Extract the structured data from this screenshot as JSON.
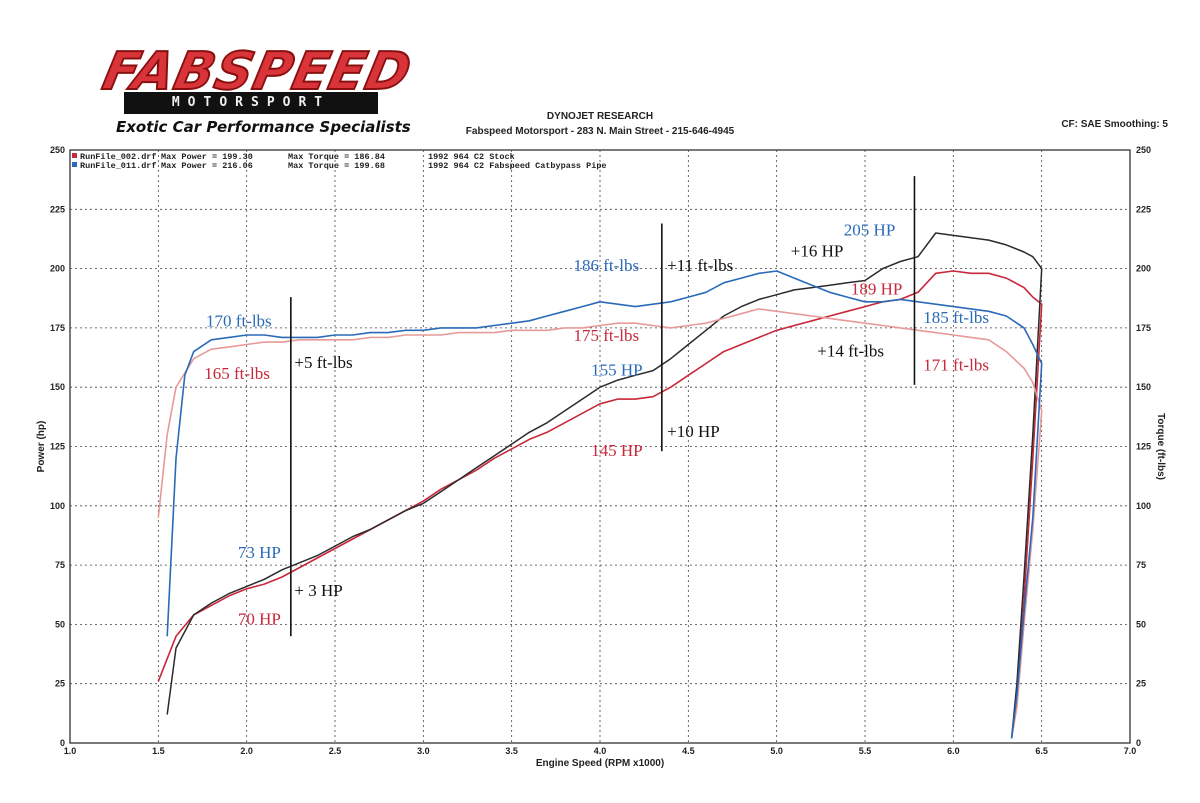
{
  "logo": {
    "brand": "FABSPEED",
    "sub": "MOTORSPORT",
    "tagline": "Exotic Car Performance Specialists"
  },
  "header": {
    "org": "DYNOJET RESEARCH",
    "address": "Fabspeed Motorsport - 283 N. Main Street - 215-646-4945",
    "settings": "CF: SAE  Smoothing: 5"
  },
  "colors": {
    "stock": "#c8283a",
    "stock_light": "#e79a9a",
    "catbypass": "#2a6ab8",
    "catbypass_light": "#7fa9dc",
    "annotation_dark": "#111111",
    "grid": "#444444"
  },
  "chart_data": {
    "type": "line",
    "title": "",
    "xlabel": "Engine Speed (RPM x1000)",
    "ylabel": "Power (hp)",
    "ylabel_right": "Torque (ft-lbs)",
    "xlim": [
      1.0,
      7.0
    ],
    "ylim": [
      0,
      250
    ],
    "ylim_right": [
      0,
      250
    ],
    "x_ticks": [
      "1.0",
      "1.5",
      "2.0",
      "2.5",
      "3.0",
      "3.5",
      "4.0",
      "4.5",
      "5.0",
      "5.5",
      "6.0",
      "6.5",
      "7.0"
    ],
    "y_ticks": [
      "0",
      "25",
      "50",
      "75",
      "100",
      "125",
      "150",
      "175",
      "200",
      "225",
      "250"
    ],
    "grid": true,
    "legend_position": "top-left",
    "legend": [
      {
        "file": "RunFile_002.drf",
        "max_power_label": "Max Power = 199.30",
        "max_torque_label": "Max Torque = 186.84",
        "description": "1992 964 C2 Stock"
      },
      {
        "file": "RunFile_011.drf",
        "max_power_label": "Max Power = 216.06",
        "max_torque_label": "Max Torque = 199.68",
        "description": "1992 964 C2 Fabspeed Catbypass Pipe"
      }
    ],
    "series": [
      {
        "key": "stock_power",
        "kind": "power",
        "x": [
          1.5,
          1.6,
          1.7,
          1.8,
          1.9,
          2.0,
          2.1,
          2.2,
          2.3,
          2.4,
          2.5,
          2.6,
          2.7,
          2.8,
          2.9,
          3.0,
          3.1,
          3.2,
          3.3,
          3.4,
          3.5,
          3.6,
          3.7,
          3.8,
          3.9,
          4.0,
          4.1,
          4.2,
          4.3,
          4.4,
          4.5,
          4.6,
          4.7,
          4.8,
          4.9,
          5.0,
          5.1,
          5.2,
          5.3,
          5.4,
          5.5,
          5.6,
          5.7,
          5.8,
          5.9,
          6.0,
          6.1,
          6.2,
          6.3,
          6.4,
          6.45,
          6.5,
          6.45,
          6.4,
          6.36,
          6.33
        ],
        "y": [
          26,
          45,
          54,
          58,
          62,
          65,
          67,
          70,
          74,
          78,
          82,
          86,
          90,
          94,
          98,
          102,
          107,
          111,
          115,
          120,
          124,
          128,
          131,
          135,
          139,
          143,
          145,
          145,
          146,
          150,
          155,
          160,
          165,
          168,
          171,
          174,
          176,
          178,
          180,
          182,
          184,
          186,
          187,
          190,
          198,
          199,
          198,
          198,
          196,
          192,
          188,
          185,
          120,
          60,
          20,
          2
        ]
      },
      {
        "key": "catbypass_power",
        "kind": "power",
        "x": [
          1.55,
          1.6,
          1.7,
          1.8,
          1.9,
          2.0,
          2.1,
          2.2,
          2.3,
          2.4,
          2.5,
          2.6,
          2.7,
          2.8,
          2.9,
          3.0,
          3.1,
          3.2,
          3.3,
          3.4,
          3.5,
          3.6,
          3.7,
          3.8,
          3.9,
          4.0,
          4.1,
          4.2,
          4.3,
          4.4,
          4.5,
          4.6,
          4.7,
          4.8,
          4.9,
          5.0,
          5.1,
          5.2,
          5.3,
          5.4,
          5.5,
          5.6,
          5.7,
          5.8,
          5.9,
          6.0,
          6.1,
          6.2,
          6.3,
          6.4,
          6.45,
          6.5,
          6.45,
          6.4,
          6.36,
          6.33
        ],
        "y": [
          12,
          40,
          54,
          59,
          63,
          66,
          69,
          73,
          76,
          79,
          83,
          87,
          90,
          94,
          98,
          101,
          106,
          111,
          116,
          121,
          126,
          131,
          135,
          140,
          145,
          150,
          153,
          155,
          157,
          162,
          168,
          174,
          180,
          184,
          187,
          189,
          191,
          192,
          193,
          194,
          195,
          200,
          203,
          205,
          215,
          214,
          213,
          212,
          210,
          207,
          205,
          200,
          130,
          70,
          25,
          2
        ]
      },
      {
        "key": "stock_torque",
        "kind": "torque",
        "x": [
          1.5,
          1.55,
          1.6,
          1.7,
          1.8,
          1.9,
          2.0,
          2.1,
          2.2,
          2.3,
          2.4,
          2.5,
          2.6,
          2.7,
          2.8,
          2.9,
          3.0,
          3.1,
          3.2,
          3.3,
          3.4,
          3.5,
          3.6,
          3.7,
          3.8,
          3.9,
          4.0,
          4.1,
          4.2,
          4.3,
          4.4,
          4.5,
          4.6,
          4.7,
          4.8,
          4.9,
          5.0,
          5.1,
          5.2,
          5.3,
          5.4,
          5.5,
          5.6,
          5.7,
          5.8,
          5.9,
          6.0,
          6.1,
          6.2,
          6.3,
          6.4,
          6.45,
          6.5,
          6.45,
          6.4,
          6.36,
          6.33
        ],
        "y": [
          95,
          130,
          150,
          162,
          166,
          167,
          168,
          169,
          169,
          170,
          170,
          170,
          170,
          171,
          171,
          172,
          172,
          172,
          173,
          173,
          173,
          174,
          174,
          174,
          175,
          175,
          176,
          177,
          177,
          176,
          175,
          176,
          177,
          179,
          181,
          183,
          182,
          181,
          180,
          179,
          178,
          177,
          176,
          175,
          174,
          173,
          172,
          171,
          170,
          165,
          158,
          152,
          140,
          90,
          50,
          15,
          2
        ]
      },
      {
        "key": "catbypass_torque",
        "kind": "torque",
        "x": [
          1.55,
          1.6,
          1.65,
          1.7,
          1.8,
          1.9,
          2.0,
          2.1,
          2.2,
          2.3,
          2.4,
          2.5,
          2.6,
          2.7,
          2.8,
          2.9,
          3.0,
          3.1,
          3.2,
          3.3,
          3.4,
          3.5,
          3.6,
          3.7,
          3.8,
          3.9,
          4.0,
          4.1,
          4.2,
          4.3,
          4.4,
          4.5,
          4.6,
          4.7,
          4.8,
          4.9,
          5.0,
          5.1,
          5.2,
          5.3,
          5.4,
          5.5,
          5.6,
          5.7,
          5.8,
          5.9,
          6.0,
          6.1,
          6.2,
          6.3,
          6.4,
          6.45,
          6.5,
          6.45,
          6.4,
          6.36,
          6.33
        ],
        "y": [
          45,
          120,
          155,
          165,
          170,
          171,
          172,
          172,
          171,
          171,
          171,
          172,
          172,
          173,
          173,
          174,
          174,
          175,
          175,
          175,
          176,
          177,
          178,
          180,
          182,
          184,
          186,
          185,
          184,
          185,
          186,
          188,
          190,
          194,
          196,
          198,
          199,
          196,
          193,
          190,
          188,
          186,
          186,
          187,
          186,
          185,
          184,
          183,
          182,
          180,
          175,
          168,
          160,
          95,
          55,
          20,
          2
        ]
      }
    ],
    "markers": [
      {
        "x": 2.25,
        "y_from": 45,
        "y_to": 188
      },
      {
        "x": 4.35,
        "y_from": 123,
        "y_to": 219
      },
      {
        "x": 5.78,
        "y_from": 151,
        "y_to": 239
      }
    ],
    "annotations": [
      {
        "text": "170 ft-lbs",
        "x": 1.77,
        "y": 175.5,
        "color": "catbypass"
      },
      {
        "text": "165 ft-lbs",
        "x": 1.76,
        "y": 153.5,
        "color": "stock"
      },
      {
        "text": "+5 ft-lbs",
        "x": 2.27,
        "y": 158,
        "color": "annotation_dark"
      },
      {
        "text": "73 HP",
        "x": 1.95,
        "y": 78,
        "color": "catbypass"
      },
      {
        "text": "70  HP",
        "x": 1.95,
        "y": 50,
        "color": "stock"
      },
      {
        "text": "+ 3 HP",
        "x": 2.27,
        "y": 62,
        "color": "annotation_dark"
      },
      {
        "text": "186 ft-lbs",
        "x": 3.85,
        "y": 199,
        "color": "catbypass"
      },
      {
        "text": "+11 ft-lbs",
        "x": 4.38,
        "y": 199,
        "color": "annotation_dark"
      },
      {
        "text": "175 ft-lbs",
        "x": 3.85,
        "y": 169.5,
        "color": "stock"
      },
      {
        "text": "155 HP",
        "x": 3.95,
        "y": 155,
        "color": "catbypass"
      },
      {
        "text": "+10 HP",
        "x": 4.38,
        "y": 129,
        "color": "annotation_dark"
      },
      {
        "text": "145 HP",
        "x": 3.95,
        "y": 121,
        "color": "stock"
      },
      {
        "text": "+16 HP",
        "x": 5.08,
        "y": 205,
        "color": "annotation_dark"
      },
      {
        "text": "205 HP",
        "x": 5.38,
        "y": 214,
        "color": "catbypass"
      },
      {
        "text": "189 HP",
        "x": 5.42,
        "y": 189,
        "color": "stock"
      },
      {
        "text": "185 ft-lbs",
        "x": 5.83,
        "y": 177,
        "color": "catbypass"
      },
      {
        "text": "+14 ft-lbs",
        "x": 5.23,
        "y": 163,
        "color": "annotation_dark"
      },
      {
        "text": "171 ft-lbs",
        "x": 5.83,
        "y": 157,
        "color": "stock"
      }
    ]
  }
}
